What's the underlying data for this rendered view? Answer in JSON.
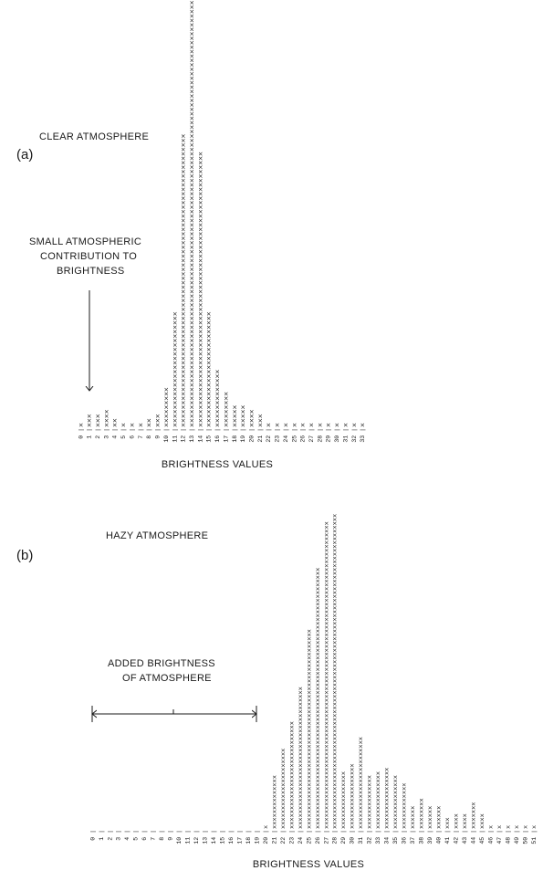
{
  "chart_data": [
    {
      "type": "bar",
      "panel_label": "(a)",
      "title": "CLEAR ATMOSPHERE",
      "xlabel": "BRIGHTNESS VALUES",
      "ylabel": "",
      "annotation": "SMALL ATMOSPHERIC CONTRIBUTION TO BRIGHTNESS",
      "annotation_lines": [
        "SMALL ATMOSPHERIC",
        "CONTRIBUTION TO",
        "BRIGHTNESS"
      ],
      "bar_symbol": "x",
      "categories": [
        "0",
        "1",
        "2",
        "3",
        "4",
        "5",
        "6",
        "7",
        "8",
        "9",
        "10",
        "11",
        "12",
        "13",
        "14",
        "15",
        "16",
        "17",
        "18",
        "19",
        "20",
        "21",
        "22",
        "23",
        "24",
        "25",
        "26",
        "27",
        "28",
        "29",
        "30",
        "31",
        "32",
        "33"
      ],
      "values": [
        1,
        3,
        3,
        4,
        2,
        1,
        1,
        1,
        2,
        3,
        9,
        26,
        66,
        96,
        62,
        26,
        13,
        8,
        5,
        5,
        4,
        3,
        1,
        1,
        1,
        1,
        1,
        1,
        1,
        1,
        1,
        1,
        1,
        1
      ]
    },
    {
      "type": "bar",
      "panel_label": "(b)",
      "title": "HAZY ATMOSPHERE",
      "xlabel": "BRIGHTNESS VALUES",
      "ylabel": "",
      "annotation": "ADDED BRIGHTNESS OF ATMOSPHERE",
      "annotation_lines": [
        "ADDED BRIGHTNESS",
        "OF ATMOSPHERE"
      ],
      "bar_symbol": "x",
      "categories": [
        "0",
        "1",
        "2",
        "3",
        "4",
        "5",
        "6",
        "7",
        "8",
        "9",
        "10",
        "11",
        "12",
        "13",
        "14",
        "15",
        "16",
        "17",
        "18",
        "19",
        "20",
        "21",
        "22",
        "23",
        "24",
        "25",
        "26",
        "27",
        "28",
        "29",
        "30",
        "31",
        "32",
        "33",
        "34",
        "35",
        "36",
        "37",
        "38",
        "39",
        "40",
        "41",
        "42",
        "43",
        "44",
        "45",
        "46",
        "47",
        "48",
        "49",
        "50",
        "51"
      ],
      "values": [
        0,
        0,
        0,
        0,
        0,
        0,
        0,
        0,
        0,
        0,
        0,
        0,
        0,
        0,
        0,
        0,
        0,
        0,
        0,
        0,
        1,
        14,
        21,
        28,
        37,
        52,
        68,
        80,
        82,
        15,
        17,
        24,
        14,
        15,
        16,
        14,
        12,
        6,
        8,
        6,
        6,
        3,
        4,
        4,
        7,
        4,
        1,
        1,
        1,
        1,
        1,
        1
      ]
    }
  ]
}
